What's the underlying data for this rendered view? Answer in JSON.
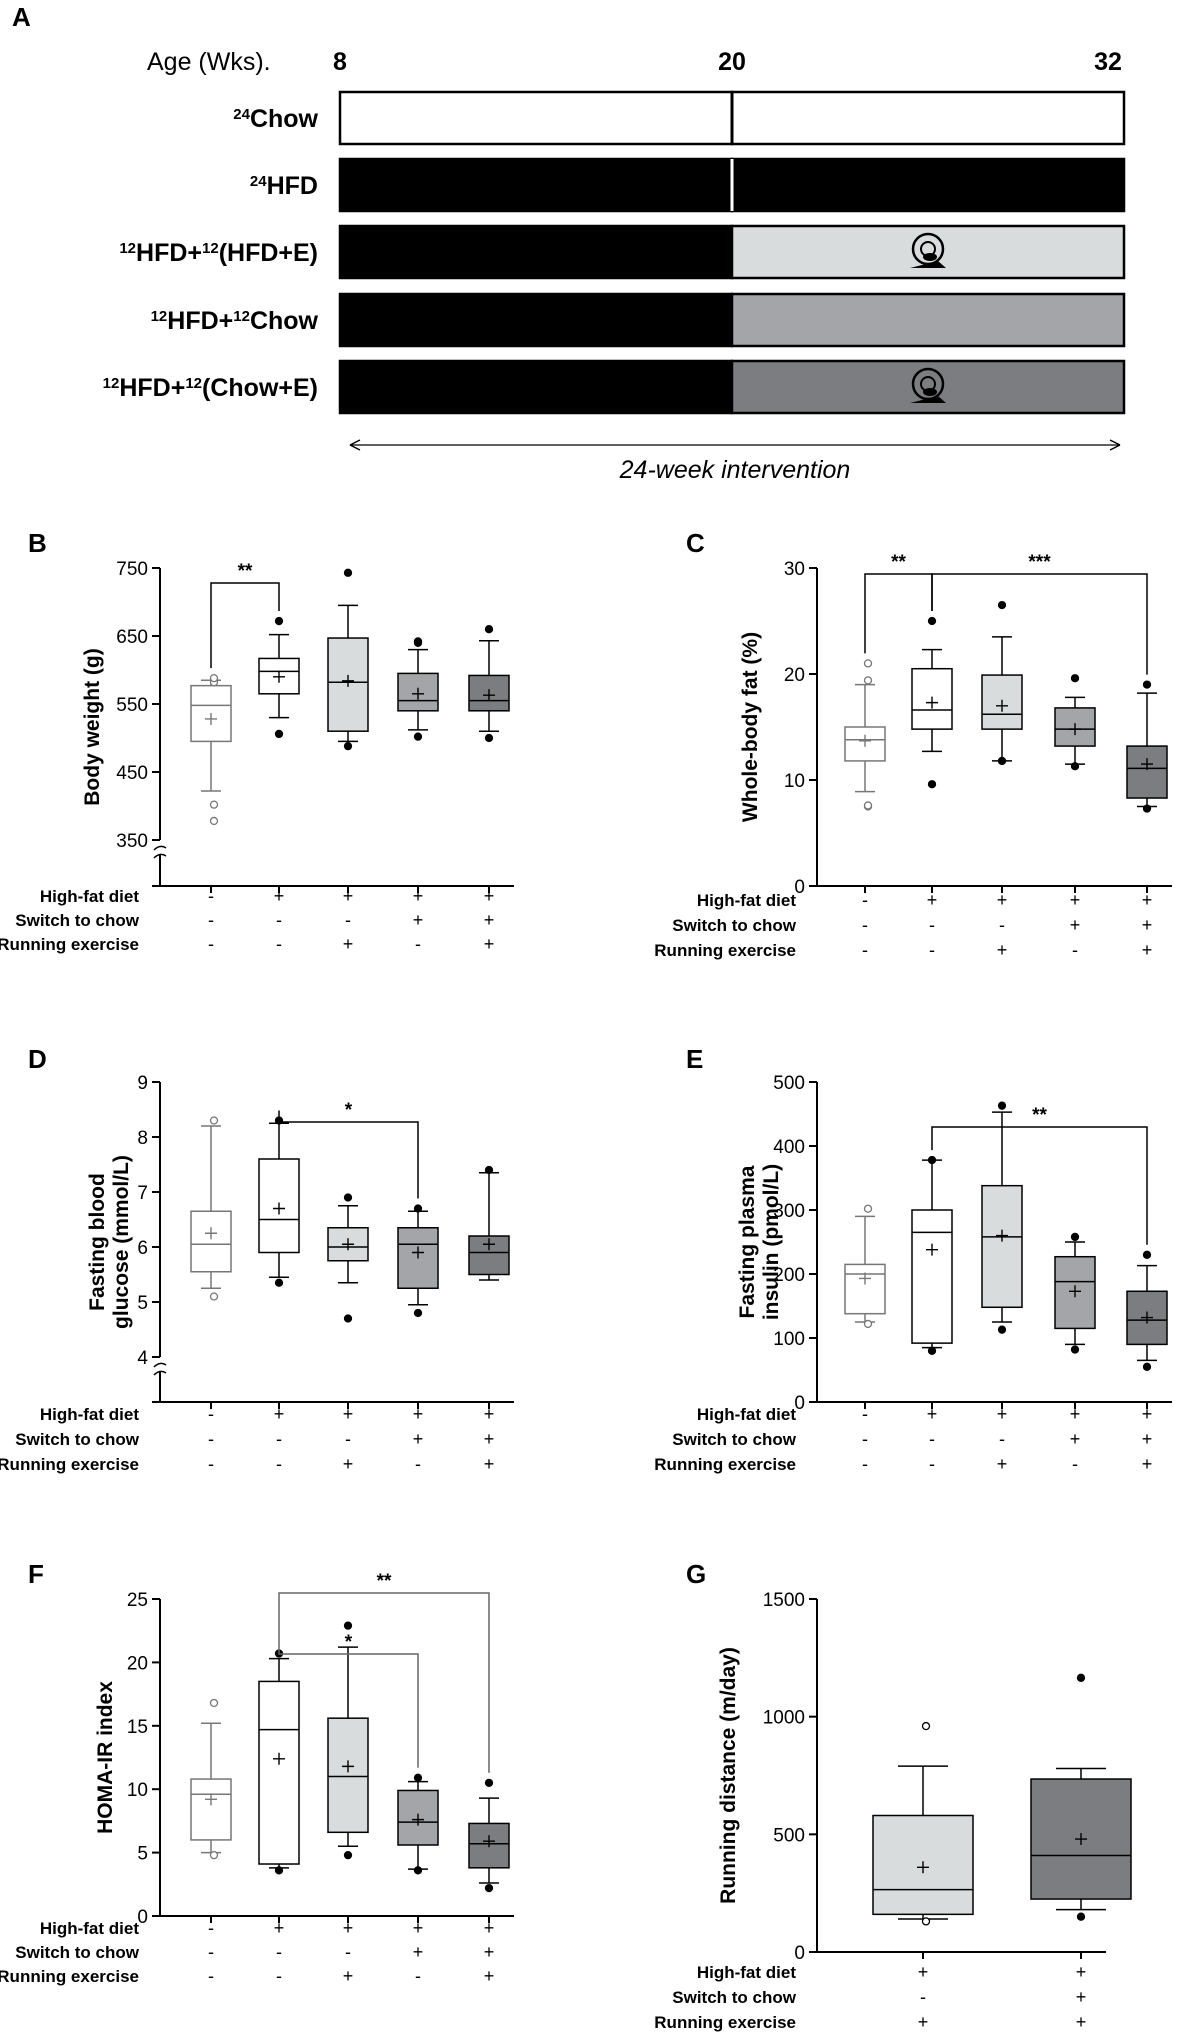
{
  "panels": {
    "A": "A",
    "B": "B",
    "C": "C",
    "D": "D",
    "E": "E",
    "F": "F",
    "G": "G"
  },
  "schedule": {
    "age_title": "Age (Wks).",
    "ages": [
      "8",
      "20",
      "32"
    ],
    "groups": [
      {
        "sup1": "24",
        "name1": "Chow",
        "sup2": "",
        "name2": "",
        "first_fill": "#ffffff",
        "second_fill": "#ffffff",
        "exercise": false,
        "wheel_icon": "",
        "break_color": "#000000"
      },
      {
        "sup1": "24",
        "name1": "HFD",
        "sup2": "",
        "name2": "",
        "first_fill": "#000000",
        "second_fill": "#000000",
        "exercise": false,
        "wheel_icon": "",
        "break_color": "#ffffff"
      },
      {
        "sup1": "12",
        "name1": "HFD+",
        "sup2": "12",
        "name2": "(HFD+E)",
        "first_fill": "#000000",
        "second_fill": "#d9dcdc",
        "exercise": true,
        "wheel_icon": "running-wheel-icon",
        "break_color": ""
      },
      {
        "sup1": "12",
        "name1": "HFD+",
        "sup2": "12",
        "name2": "Chow",
        "first_fill": "#000000",
        "second_fill": "#a4a5a8",
        "exercise": false,
        "wheel_icon": "",
        "break_color": ""
      },
      {
        "sup1": "12",
        "name1": "HFD+",
        "sup2": "12",
        "name2": "(Chow+E)",
        "first_fill": "#000000",
        "second_fill": "#7c7d80",
        "exercise": true,
        "wheel_icon": "running-wheel-icon",
        "break_color": ""
      }
    ],
    "intervention_label": "24-week intervention"
  },
  "conditions": {
    "labels": [
      "High-fat diet",
      "Switch to chow",
      "Running exercise"
    ],
    "five_group": [
      [
        "-",
        "+",
        "+",
        "+",
        "+"
      ],
      [
        "-",
        "-",
        "-",
        "+",
        "+"
      ],
      [
        "-",
        "-",
        "+",
        "-",
        "+"
      ]
    ],
    "two_group": [
      [
        "+",
        "+"
      ],
      [
        "-",
        "+"
      ],
      [
        "+",
        "+"
      ]
    ]
  },
  "group_colors": [
    "#ffffff",
    "#ffffff",
    "#d9dcdc",
    "#a4a5a8",
    "#7c7d80"
  ],
  "group_colors_g": [
    "#d9dcdc",
    "#7c7d80"
  ],
  "chart_data": [
    {
      "panel": "B",
      "type": "box",
      "ylabel": "Body weight (g)",
      "yticks": [
        "350",
        "450",
        "550",
        "650",
        "750"
      ],
      "ylim": [
        350,
        750
      ],
      "axis_break": true,
      "groups": [
        {
          "whislo": 422,
          "q1": 495,
          "med": 548,
          "q3": 577,
          "whishi": 585,
          "mean": 528,
          "fliers": [
            378,
            402,
            582,
            588
          ],
          "filled_fliers": false
        },
        {
          "whislo": 530,
          "q1": 565,
          "med": 598,
          "q3": 617,
          "whishi": 652,
          "mean": 590,
          "fliers": [
            506,
            672
          ],
          "filled_fliers": true
        },
        {
          "whislo": 495,
          "q1": 510,
          "med": 582,
          "q3": 647,
          "whishi": 695,
          "mean": 584,
          "fliers": [
            488,
            743
          ],
          "filled_fliers": true
        },
        {
          "whislo": 512,
          "q1": 540,
          "med": 555,
          "q3": 595,
          "whishi": 630,
          "mean": 565,
          "fliers": [
            502,
            640,
            642
          ],
          "filled_fliers": true
        },
        {
          "whislo": 510,
          "q1": 540,
          "med": 555,
          "q3": 592,
          "whishi": 643,
          "mean": 563,
          "fliers": [
            500,
            660
          ],
          "filled_fliers": true
        }
      ],
      "significance": [
        {
          "from": 1,
          "to": 2,
          "label": "**"
        }
      ]
    },
    {
      "panel": "C",
      "type": "box",
      "ylabel": "Whole-body fat (%)",
      "yticks": [
        "0",
        "10",
        "20",
        "30"
      ],
      "ylim": [
        0,
        30
      ],
      "axis_break": false,
      "groups": [
        {
          "whislo": 8.9,
          "q1": 11.8,
          "med": 13.8,
          "q3": 15.0,
          "whishi": 19.0,
          "mean": 13.7,
          "fliers": [
            7.5,
            7.6,
            19.4,
            21.0
          ],
          "filled_fliers": false
        },
        {
          "whislo": 12.7,
          "q1": 14.8,
          "med": 16.6,
          "q3": 20.5,
          "whishi": 22.3,
          "mean": 17.3,
          "fliers": [
            9.6,
            25.0
          ],
          "filled_fliers": true
        },
        {
          "whislo": 11.8,
          "q1": 14.8,
          "med": 16.2,
          "q3": 19.9,
          "whishi": 23.5,
          "mean": 17.0,
          "fliers": [
            11.8,
            26.5
          ],
          "filled_fliers": true
        },
        {
          "whislo": 11.5,
          "q1": 13.2,
          "med": 14.8,
          "q3": 16.8,
          "whishi": 17.8,
          "mean": 14.8,
          "fliers": [
            11.3,
            19.6
          ],
          "filled_fliers": true
        },
        {
          "whislo": 7.5,
          "q1": 8.3,
          "med": 11.1,
          "q3": 13.2,
          "whishi": 18.2,
          "mean": 11.5,
          "fliers": [
            7.3,
            19.0
          ],
          "filled_fliers": true
        }
      ],
      "significance": [
        {
          "from": 1,
          "to": 2,
          "label": "**"
        },
        {
          "from": 2,
          "to": 5,
          "label": "***"
        }
      ]
    },
    {
      "panel": "D",
      "type": "box",
      "ylabel": [
        "Fasting blood",
        "glucose (mmol/L)"
      ],
      "yticks": [
        "4",
        "5",
        "6",
        "7",
        "8",
        "9"
      ],
      "ylim": [
        4,
        9
      ],
      "axis_break": true,
      "groups": [
        {
          "whislo": 5.25,
          "q1": 5.55,
          "med": 6.05,
          "q3": 6.65,
          "whishi": 8.2,
          "mean": 6.25,
          "fliers": [
            5.1,
            8.3
          ],
          "filled_fliers": false
        },
        {
          "whislo": 5.45,
          "q1": 5.9,
          "med": 6.5,
          "q3": 7.6,
          "whishi": 8.25,
          "mean": 6.7,
          "fliers": [
            5.35,
            8.3
          ],
          "filled_fliers": true
        },
        {
          "whislo": 5.35,
          "q1": 5.75,
          "med": 6.0,
          "q3": 6.35,
          "whishi": 6.75,
          "mean": 6.05,
          "fliers": [
            4.7,
            6.9
          ],
          "filled_fliers": true
        },
        {
          "whislo": 4.95,
          "q1": 5.25,
          "med": 6.05,
          "q3": 6.35,
          "whishi": 6.65,
          "mean": 5.9,
          "fliers": [
            4.8,
            6.7
          ],
          "filled_fliers": true
        },
        {
          "whislo": 5.4,
          "q1": 5.5,
          "med": 5.9,
          "q3": 6.2,
          "whishi": 7.35,
          "mean": 6.05,
          "fliers": [
            7.4
          ],
          "filled_fliers": true
        }
      ],
      "significance": [
        {
          "from": 2,
          "to": 4,
          "label": "*"
        }
      ]
    },
    {
      "panel": "E",
      "type": "box",
      "ylabel": [
        "Fasting plasma",
        "insulin (pmol/L)"
      ],
      "yticks": [
        "0",
        "100",
        "200",
        "300",
        "400",
        "500"
      ],
      "ylim": [
        0,
        500
      ],
      "axis_break": false,
      "groups": [
        {
          "whislo": 125,
          "q1": 138,
          "med": 200,
          "q3": 215,
          "whishi": 290,
          "mean": 193,
          "fliers": [
            122,
            302
          ],
          "filled_fliers": false
        },
        {
          "whislo": 85,
          "q1": 92,
          "med": 265,
          "q3": 300,
          "whishi": 378,
          "mean": 238,
          "fliers": [
            80,
            378
          ],
          "filled_fliers": true
        },
        {
          "whislo": 125,
          "q1": 148,
          "med": 258,
          "q3": 338,
          "whishi": 453,
          "mean": 260,
          "fliers": [
            113,
            463
          ],
          "filled_fliers": true
        },
        {
          "whislo": 90,
          "q1": 115,
          "med": 188,
          "q3": 227,
          "whishi": 250,
          "mean": 173,
          "fliers": [
            82,
            258
          ],
          "filled_fliers": true
        },
        {
          "whislo": 65,
          "q1": 90,
          "med": 128,
          "q3": 173,
          "whishi": 213,
          "mean": 132,
          "fliers": [
            55,
            230
          ],
          "filled_fliers": true
        }
      ],
      "significance": [
        {
          "from": 2,
          "to": 5,
          "label": "**"
        }
      ]
    },
    {
      "panel": "F",
      "type": "box",
      "ylabel": "HOMA-IR index",
      "yticks": [
        "0",
        "5",
        "10",
        "15",
        "20",
        "25"
      ],
      "ylim": [
        0,
        25
      ],
      "axis_break": false,
      "groups": [
        {
          "whislo": 5.0,
          "q1": 6.0,
          "med": 9.6,
          "q3": 10.8,
          "whishi": 15.2,
          "mean": 9.2,
          "fliers": [
            4.8,
            16.8
          ],
          "filled_fliers": false
        },
        {
          "whislo": 3.8,
          "q1": 4.1,
          "med": 14.7,
          "q3": 18.5,
          "whishi": 20.3,
          "mean": 12.4,
          "fliers": [
            3.6,
            20.7
          ],
          "filled_fliers": true
        },
        {
          "whislo": 5.5,
          "q1": 6.6,
          "med": 11.0,
          "q3": 15.6,
          "whishi": 21.2,
          "mean": 11.8,
          "fliers": [
            4.8,
            22.9
          ],
          "filled_fliers": true
        },
        {
          "whislo": 3.7,
          "q1": 5.6,
          "med": 7.4,
          "q3": 9.9,
          "whishi": 10.6,
          "mean": 7.6,
          "fliers": [
            3.6,
            10.9
          ],
          "filled_fliers": true
        },
        {
          "whislo": 2.6,
          "q1": 3.8,
          "med": 5.7,
          "q3": 7.3,
          "whishi": 9.3,
          "mean": 5.9,
          "fliers": [
            2.2,
            10.5
          ],
          "filled_fliers": true
        }
      ],
      "significance": [
        {
          "from": 2,
          "to": 4,
          "label": "*"
        },
        {
          "from": 2,
          "to": 5,
          "label": "**"
        }
      ]
    },
    {
      "panel": "G",
      "type": "box",
      "ylabel": "Running distance (m/day)",
      "yticks": [
        "0",
        "500",
        "1000",
        "1500"
      ],
      "ylim": [
        0,
        1500
      ],
      "axis_break": false,
      "groups": [
        {
          "whislo": 140,
          "q1": 160,
          "med": 265,
          "q3": 580,
          "whishi": 790,
          "mean": 360,
          "fliers": [
            130,
            960
          ],
          "filled_fliers": false
        },
        {
          "whislo": 180,
          "q1": 225,
          "med": 410,
          "q3": 735,
          "whishi": 780,
          "mean": 480,
          "fliers": [
            150,
            1165
          ],
          "filled_fliers": true
        }
      ],
      "significance": []
    }
  ]
}
